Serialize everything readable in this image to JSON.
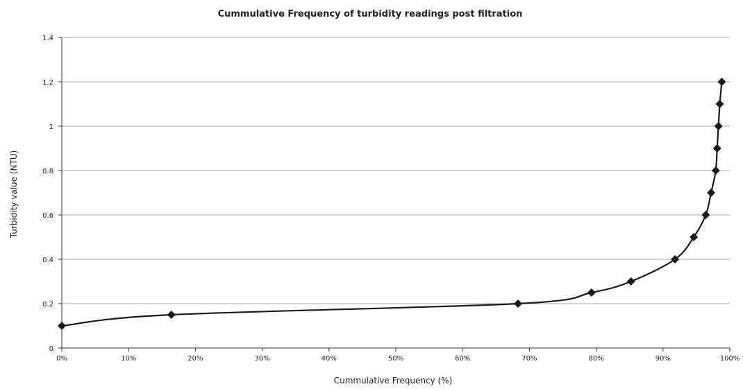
{
  "chart_data": {
    "type": "line",
    "title": "Cummulative Frequency of turbidity readings post filtration",
    "xlabel": "Cummulative Frequency (%)",
    "ylabel": "Turbidity value (NTU)",
    "xlim": [
      0,
      100
    ],
    "ylim": [
      0,
      1.4
    ],
    "x_ticks": [
      "0%",
      "10%",
      "20%",
      "30%",
      "40%",
      "50%",
      "60%",
      "70%",
      "80%",
      "90%",
      "100%"
    ],
    "y_ticks": [
      "0",
      "0.2",
      "0.4",
      "0.6",
      "0.8",
      "1",
      "1.2",
      "1.4"
    ],
    "grid": "horizontal",
    "legend": "none",
    "colors": {
      "line": "#1a1a1a",
      "marker": "#1a1a1a",
      "grid": "#a6a6a6"
    },
    "marker": "diamond",
    "series": [
      {
        "x": [
          0,
          16.4,
          68.3,
          79.3,
          85.2,
          91.8,
          94.6,
          96.4,
          97.2,
          97.9,
          98.1,
          98.3,
          98.5,
          98.8
        ],
        "y": [
          0.1,
          0.15,
          0.2,
          0.25,
          0.3,
          0.4,
          0.5,
          0.6,
          0.7,
          0.8,
          0.9,
          1.0,
          1.1,
          1.2
        ]
      }
    ]
  }
}
